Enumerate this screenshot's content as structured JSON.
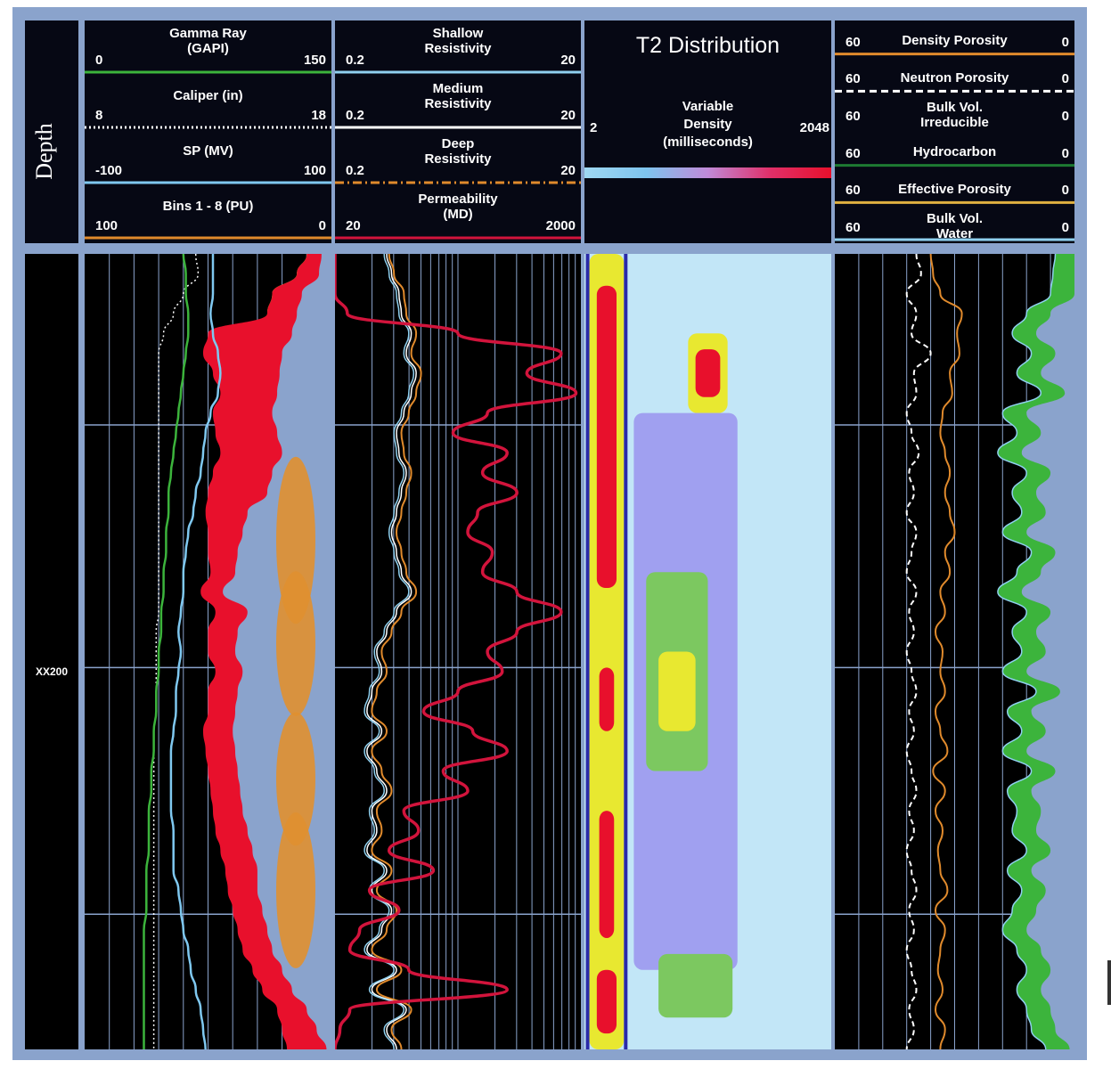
{
  "depth": {
    "title": "Depth",
    "marker": "XX200"
  },
  "track1": {
    "rows": [
      {
        "left": "0",
        "name": "Gamma Ray\n(GAPI)",
        "right": "150",
        "color": "#3cb43c",
        "style": "solid"
      },
      {
        "left": "8",
        "name": "Caliper (in)",
        "right": "18",
        "color": "#ffffff",
        "style": "dotted"
      },
      {
        "left": "-100",
        "name": "SP (MV)",
        "right": "100",
        "color": "#7fc8f0",
        "style": "solid"
      },
      {
        "left": "100",
        "name": "Bins 1 - 8 (PU)",
        "right": "0",
        "color": "#e08a2c",
        "style": "solid"
      }
    ]
  },
  "track2": {
    "rows": [
      {
        "left": "0.2",
        "name": "Shallow\nResistivity",
        "right": "20",
        "color": "#8fd0ef",
        "style": "solid"
      },
      {
        "left": "0.2",
        "name": "Medium\nResistivity",
        "right": "20",
        "color": "#ffffff",
        "style": "solid"
      },
      {
        "left": "0.2",
        "name": "Deep\nResistivity",
        "right": "20",
        "color": "#e08a2c",
        "style": "dashdot"
      },
      {
        "left": "20",
        "name": "Permeability\n(MD)",
        "right": "2000",
        "color": "#d2143c",
        "style": "solid"
      }
    ]
  },
  "track3": {
    "title": "T2 Distribution",
    "left": "2",
    "name": "Variable\nDensity\n(milliseconds)",
    "right": "2048",
    "gradient": [
      "#9fd8f2",
      "#7ec4ee",
      "#c08ad8",
      "#e0306a",
      "#e8102c"
    ]
  },
  "track4": {
    "rows": [
      {
        "left": "60",
        "name": "Density Porosity",
        "right": "0",
        "color": "#e08a2c",
        "style": "solid"
      },
      {
        "left": "60",
        "name": "Neutron Porosity",
        "right": "0",
        "color": "#ffffff",
        "style": "dashed"
      },
      {
        "left": "60",
        "name": "Bulk Vol.\nIrreducible",
        "right": "0",
        "color": "",
        "style": "none"
      },
      {
        "left": "60",
        "name": "Hydrocarbon",
        "right": "0",
        "color": "#1e7a32",
        "style": "solid"
      },
      {
        "left": "60",
        "name": "Effective Porosity",
        "right": "0",
        "color": "#e0b040",
        "style": "solid"
      },
      {
        "left": "60",
        "name": "Bulk Vol.\nWater",
        "right": "0",
        "color": "#8fd0ef",
        "style": "solid"
      }
    ]
  },
  "colors": {
    "frame": "#8aa3cc",
    "track_bg": "#000000",
    "gamma": "#3cb43c",
    "sp": "#7fc8f0",
    "caliper": "#ffffff",
    "bins": [
      "#8fd0ef",
      "#4c86e0",
      "#3cb43c",
      "#e8e830",
      "#e8102c",
      "#e09030"
    ],
    "resistivity": [
      "#8fd0ef",
      "#ffffff",
      "#e08a2c"
    ],
    "permeability": "#d2143c",
    "t2_bg": "#c2e6f7",
    "t2_levels": [
      "#2a2aa8",
      "#a0a0f0",
      "#7cc860",
      "#e8e830",
      "#e8102c"
    ],
    "bvw": "#3cb43c"
  },
  "chart_data": [
    {
      "type": "area",
      "name": "track1",
      "depth_range": [
        0,
        1
      ],
      "samples": 41,
      "gamma_ray": [
        0.4,
        0.41,
        0.41,
        0.42,
        0.42,
        0.41,
        0.4,
        0.39,
        0.38,
        0.37,
        0.36,
        0.35,
        0.34,
        0.34,
        0.33,
        0.33,
        0.32,
        0.32,
        0.31,
        0.31,
        0.3,
        0.3,
        0.29,
        0.29,
        0.28,
        0.28,
        0.27,
        0.27,
        0.26,
        0.26,
        0.26,
        0.25,
        0.25,
        0.25,
        0.24,
        0.24,
        0.24,
        0.24,
        0.24,
        0.24,
        0.24
      ],
      "sp": [
        0.52,
        0.52,
        0.52,
        0.51,
        0.52,
        0.54,
        0.55,
        0.54,
        0.51,
        0.49,
        0.48,
        0.47,
        0.45,
        0.44,
        0.42,
        0.41,
        0.4,
        0.4,
        0.39,
        0.38,
        0.39,
        0.38,
        0.37,
        0.37,
        0.36,
        0.35,
        0.35,
        0.35,
        0.35,
        0.36,
        0.36,
        0.36,
        0.38,
        0.39,
        0.4,
        0.42,
        0.43,
        0.45,
        0.47,
        0.48,
        0.49
      ],
      "caliper": [
        0.45,
        0.46,
        0.4,
        0.36,
        0.32,
        0.3,
        0.3,
        0.3,
        0.3,
        0.3,
        0.3,
        0.3,
        0.3,
        0.3,
        0.3,
        0.3,
        0.3,
        0.3,
        0.3,
        0.29,
        0.29,
        0.29,
        0.29,
        0.29,
        0.28,
        0.28,
        0.28,
        0.28,
        0.28,
        0.28,
        0.28,
        0.28,
        0.28,
        0.28,
        0.28,
        0.28,
        0.28,
        0.28,
        0.28,
        0.28,
        0.28
      ],
      "bins_cumulative": {
        "light_blue": [
          0.9,
          0.89,
          0.82,
          0.8,
          0.78,
          0.74,
          0.73,
          0.72,
          0.7,
          0.72,
          0.74,
          0.7,
          0.68,
          0.6,
          0.58,
          0.56,
          0.55,
          0.5,
          0.6,
          0.56,
          0.55,
          0.58,
          0.56,
          0.55,
          0.54,
          0.55,
          0.56,
          0.57,
          0.58,
          0.6,
          0.62,
          0.64,
          0.64,
          0.66,
          0.68,
          0.7,
          0.74,
          0.78,
          0.84,
          0.88,
          0.92
        ],
        "blue": [
          0.9,
          0.88,
          0.8,
          0.78,
          0.76,
          0.72,
          0.71,
          0.7,
          0.68,
          0.7,
          0.72,
          0.68,
          0.66,
          0.58,
          0.56,
          0.54,
          0.53,
          0.49,
          0.58,
          0.54,
          0.53,
          0.56,
          0.54,
          0.53,
          0.52,
          0.53,
          0.54,
          0.55,
          0.56,
          0.58,
          0.6,
          0.62,
          0.62,
          0.64,
          0.66,
          0.68,
          0.72,
          0.76,
          0.82,
          0.86,
          0.9
        ],
        "green": [
          0.9,
          0.86,
          0.76,
          0.74,
          0.7,
          0.66,
          0.66,
          0.64,
          0.64,
          0.66,
          0.7,
          0.62,
          0.6,
          0.54,
          0.54,
          0.52,
          0.52,
          0.48,
          0.55,
          0.52,
          0.52,
          0.55,
          0.52,
          0.52,
          0.5,
          0.51,
          0.52,
          0.53,
          0.54,
          0.55,
          0.57,
          0.59,
          0.6,
          0.62,
          0.64,
          0.66,
          0.7,
          0.74,
          0.8,
          0.84,
          0.88
        ],
        "yellow": [
          0.9,
          0.86,
          0.76,
          0.74,
          0.54,
          0.52,
          0.55,
          0.57,
          0.54,
          0.56,
          0.62,
          0.56,
          0.54,
          0.53,
          0.54,
          0.52,
          0.52,
          0.48,
          0.55,
          0.52,
          0.52,
          0.55,
          0.52,
          0.52,
          0.5,
          0.51,
          0.52,
          0.53,
          0.54,
          0.55,
          0.57,
          0.59,
          0.6,
          0.62,
          0.64,
          0.66,
          0.7,
          0.74,
          0.8,
          0.84,
          0.88
        ],
        "red": [
          0.9,
          0.86,
          0.76,
          0.74,
          0.5,
          0.48,
          0.52,
          0.55,
          0.52,
          0.53,
          0.55,
          0.52,
          0.5,
          0.49,
          0.5,
          0.5,
          0.51,
          0.47,
          0.53,
          0.5,
          0.5,
          0.53,
          0.5,
          0.5,
          0.48,
          0.49,
          0.5,
          0.51,
          0.52,
          0.53,
          0.55,
          0.57,
          0.58,
          0.6,
          0.62,
          0.64,
          0.68,
          0.72,
          0.78,
          0.8,
          0.82
        ]
      }
    },
    {
      "type": "line",
      "name": "track2",
      "depth_range": [
        0,
        1
      ],
      "samples": 41,
      "shallow_resistivity": [
        0.2,
        0.22,
        0.25,
        0.26,
        0.3,
        0.28,
        0.32,
        0.3,
        0.27,
        0.24,
        0.25,
        0.28,
        0.26,
        0.24,
        0.22,
        0.24,
        0.26,
        0.3,
        0.24,
        0.2,
        0.16,
        0.18,
        0.14,
        0.12,
        0.18,
        0.12,
        0.16,
        0.2,
        0.14,
        0.16,
        0.12,
        0.2,
        0.14,
        0.22,
        0.18,
        0.12,
        0.24,
        0.14,
        0.28,
        0.2,
        0.24
      ],
      "medium_resistivity": [
        0.21,
        0.23,
        0.26,
        0.27,
        0.31,
        0.29,
        0.33,
        0.31,
        0.28,
        0.25,
        0.26,
        0.29,
        0.27,
        0.25,
        0.23,
        0.25,
        0.27,
        0.31,
        0.25,
        0.21,
        0.17,
        0.19,
        0.15,
        0.13,
        0.19,
        0.13,
        0.17,
        0.21,
        0.15,
        0.17,
        0.13,
        0.21,
        0.15,
        0.23,
        0.19,
        0.13,
        0.25,
        0.15,
        0.29,
        0.21,
        0.25
      ],
      "deep_resistivity": [
        0.22,
        0.24,
        0.28,
        0.29,
        0.33,
        0.31,
        0.35,
        0.33,
        0.3,
        0.27,
        0.28,
        0.31,
        0.29,
        0.27,
        0.25,
        0.27,
        0.29,
        0.33,
        0.27,
        0.23,
        0.19,
        0.21,
        0.17,
        0.15,
        0.21,
        0.15,
        0.19,
        0.23,
        0.17,
        0.19,
        0.15,
        0.23,
        0.17,
        0.25,
        0.21,
        0.15,
        0.27,
        0.17,
        0.31,
        0.23,
        0.27
      ],
      "permeability": [
        0.0,
        0.0,
        0.0,
        0.05,
        0.5,
        0.92,
        0.78,
        0.98,
        0.62,
        0.48,
        0.7,
        0.6,
        0.74,
        0.58,
        0.54,
        0.64,
        0.6,
        0.74,
        0.92,
        0.74,
        0.62,
        0.68,
        0.5,
        0.36,
        0.56,
        0.7,
        0.44,
        0.54,
        0.28,
        0.34,
        0.22,
        0.4,
        0.14,
        0.26,
        0.1,
        0.06,
        0.3,
        0.7,
        0.06,
        0.02,
        0.0
      ]
    },
    {
      "type": "heatmap",
      "name": "track3",
      "depth_range": [
        0,
        1
      ],
      "note_levels": 5,
      "bands": [
        {
          "x": [
            0.02,
            0.16
          ],
          "y": [
            0.0,
            1.0
          ],
          "level": 3
        },
        {
          "x": [
            0.05,
            0.13
          ],
          "y": [
            0.04,
            0.42
          ],
          "level": 4
        },
        {
          "x": [
            0.06,
            0.12
          ],
          "y": [
            0.52,
            0.6
          ],
          "level": 4
        },
        {
          "x": [
            0.06,
            0.12
          ],
          "y": [
            0.7,
            0.86
          ],
          "level": 4
        },
        {
          "x": [
            0.05,
            0.13
          ],
          "y": [
            0.9,
            0.98
          ],
          "level": 4
        },
        {
          "x": [
            0.42,
            0.58
          ],
          "y": [
            0.1,
            0.2
          ],
          "level": 3
        },
        {
          "x": [
            0.45,
            0.55
          ],
          "y": [
            0.12,
            0.18
          ],
          "level": 4
        },
        {
          "x": [
            0.2,
            0.62
          ],
          "y": [
            0.2,
            0.9
          ],
          "level": 1
        },
        {
          "x": [
            0.25,
            0.5
          ],
          "y": [
            0.4,
            0.65
          ],
          "level": 2
        },
        {
          "x": [
            0.3,
            0.45
          ],
          "y": [
            0.5,
            0.6
          ],
          "level": 3
        },
        {
          "x": [
            0.3,
            0.6
          ],
          "y": [
            0.88,
            0.96
          ],
          "level": 2
        }
      ]
    },
    {
      "type": "area",
      "name": "track4",
      "depth_range": [
        0,
        1
      ],
      "samples": 41,
      "density_porosity": [
        0.4,
        0.41,
        0.44,
        0.53,
        0.51,
        0.52,
        0.48,
        0.49,
        0.45,
        0.44,
        0.46,
        0.48,
        0.46,
        0.48,
        0.5,
        0.46,
        0.48,
        0.44,
        0.46,
        0.42,
        0.45,
        0.44,
        0.46,
        0.42,
        0.44,
        0.47,
        0.41,
        0.46,
        0.42,
        0.45,
        0.43,
        0.44,
        0.47,
        0.42,
        0.46,
        0.44,
        0.43,
        0.45,
        0.42,
        0.46,
        0.44
      ],
      "neutron_porosity": [
        0.34,
        0.36,
        0.3,
        0.34,
        0.32,
        0.4,
        0.33,
        0.34,
        0.3,
        0.32,
        0.35,
        0.31,
        0.33,
        0.3,
        0.34,
        0.32,
        0.3,
        0.34,
        0.31,
        0.33,
        0.3,
        0.32,
        0.34,
        0.31,
        0.33,
        0.3,
        0.32,
        0.34,
        0.31,
        0.33,
        0.3,
        0.32,
        0.34,
        0.31,
        0.33,
        0.3,
        0.32,
        0.34,
        0.31,
        0.33,
        0.3
      ],
      "bulk_vol_water": [
        0.92,
        0.91,
        0.9,
        0.8,
        0.74,
        0.82,
        0.76,
        0.86,
        0.7,
        0.76,
        0.68,
        0.8,
        0.74,
        0.78,
        0.7,
        0.82,
        0.76,
        0.68,
        0.8,
        0.74,
        0.78,
        0.7,
        0.84,
        0.72,
        0.78,
        0.7,
        0.82,
        0.72,
        0.76,
        0.74,
        0.8,
        0.72,
        0.78,
        0.74,
        0.7,
        0.76,
        0.8,
        0.76,
        0.8,
        0.82,
        0.88
      ]
    }
  ]
}
